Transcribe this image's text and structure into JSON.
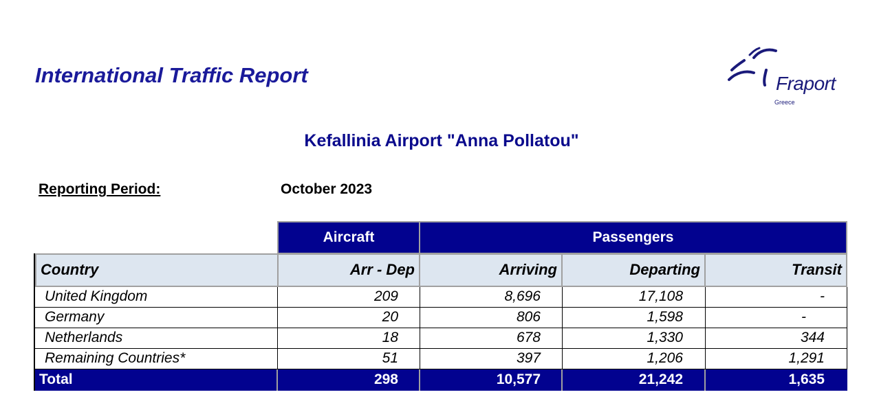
{
  "header": {
    "title": "International Traffic Report",
    "logo": {
      "word": "Fraport",
      "sub": "Greece"
    }
  },
  "airport": "Kefallinia Airport \"Anna Pollatou\"",
  "period": {
    "label": "Reporting Period:",
    "value": "October 2023"
  },
  "table": {
    "groups": {
      "aircraft": "Aircraft",
      "passengers": "Passengers"
    },
    "columns": [
      "Country",
      "Arr - Dep",
      "Arriving",
      "Departing",
      "Transit"
    ],
    "rows": [
      {
        "country": "United Kingdom",
        "arr_dep": "209",
        "arriving": "8,696",
        "departing": "17,108",
        "transit": "-"
      },
      {
        "country": "Germany",
        "arr_dep": "20",
        "arriving": "806",
        "departing": "1,598",
        "transit": "-"
      },
      {
        "country": "Netherlands",
        "arr_dep": "18",
        "arriving": "678",
        "departing": "1,330",
        "transit": "344"
      },
      {
        "country": "Remaining Countries*",
        "arr_dep": "51",
        "arriving": "397",
        "departing": "1,206",
        "transit": "1,291"
      }
    ],
    "total": {
      "label": "Total",
      "arr_dep": "298",
      "arriving": "10,577",
      "departing": "21,242",
      "transit": "1,635"
    }
  },
  "colors": {
    "title": "#1a1a9a",
    "header_dark": "#02028f",
    "header_light": "#dde6f0"
  }
}
